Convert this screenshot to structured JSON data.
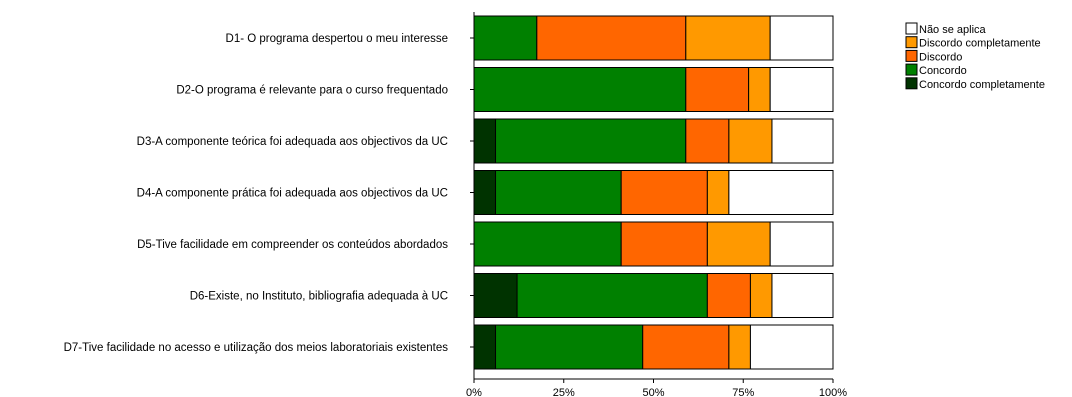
{
  "chart_data": {
    "type": "bar",
    "orientation": "horizontal",
    "stacked": "percent",
    "categories": [
      "D1- O programa despertou o meu interesse",
      "D2-O programa é relevante para o curso frequentado",
      "D3-A componente teórica foi adequada aos objectivos da UC",
      "D4-A componente prática foi adequada aos objectivos da UC",
      "D5-Tive facilidade em compreender os conteúdos abordados",
      "D6-Existe, no Instituto, bibliografia adequada à UC",
      "D7-Tive facilidade no acesso e utilização dos meios laboratoriais existentes"
    ],
    "series": [
      {
        "name": "Concordo completamente",
        "color": "#003300",
        "values": [
          0,
          0,
          6,
          6,
          0,
          12,
          6
        ]
      },
      {
        "name": "Concordo",
        "color": "#008000",
        "values": [
          17.5,
          59,
          53,
          35,
          41,
          53,
          41
        ]
      },
      {
        "name": "Discordo",
        "color": "#ff6600",
        "values": [
          41.5,
          17.5,
          12,
          24,
          24,
          12,
          24
        ]
      },
      {
        "name": "Discordo completamente",
        "color": "#ff9900",
        "values": [
          23.5,
          6,
          12,
          6,
          17.5,
          6,
          6
        ]
      },
      {
        "name": "Não se aplica",
        "color": "#ffffff",
        "values": [
          17.5,
          17.5,
          17,
          29,
          17.5,
          17,
          23
        ]
      }
    ],
    "legend_order": [
      "Não se aplica",
      "Discordo completamente",
      "Discordo",
      "Concordo",
      "Concordo completamente"
    ],
    "x_ticks": [
      "0%",
      "25%",
      "50%",
      "75%",
      "100%"
    ],
    "xlim": [
      0,
      100
    ],
    "grid": false,
    "legend_position": "top-right"
  }
}
